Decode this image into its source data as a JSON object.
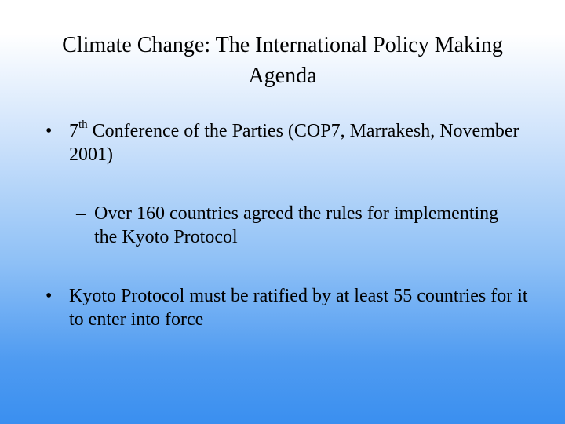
{
  "slide": {
    "title": "Climate Change: The International Policy Making Agenda",
    "bullets": [
      {
        "marker": "•",
        "ordinal_number": "7",
        "ordinal_suffix": "th",
        "text_rest": " Conference of the Parties (COP7, Marrakesh, November 2001)"
      },
      {
        "marker": "–",
        "text": "Over 160 countries agreed the rules for implementing the Kyoto Protocol"
      },
      {
        "marker": "•",
        "text": "Kyoto Protocol must be ratified by at least 55 countries for it to enter into force"
      }
    ],
    "colors": {
      "background_top": "#ffffff",
      "background_bottom": "#3a8ff0",
      "text": "#000000"
    }
  }
}
